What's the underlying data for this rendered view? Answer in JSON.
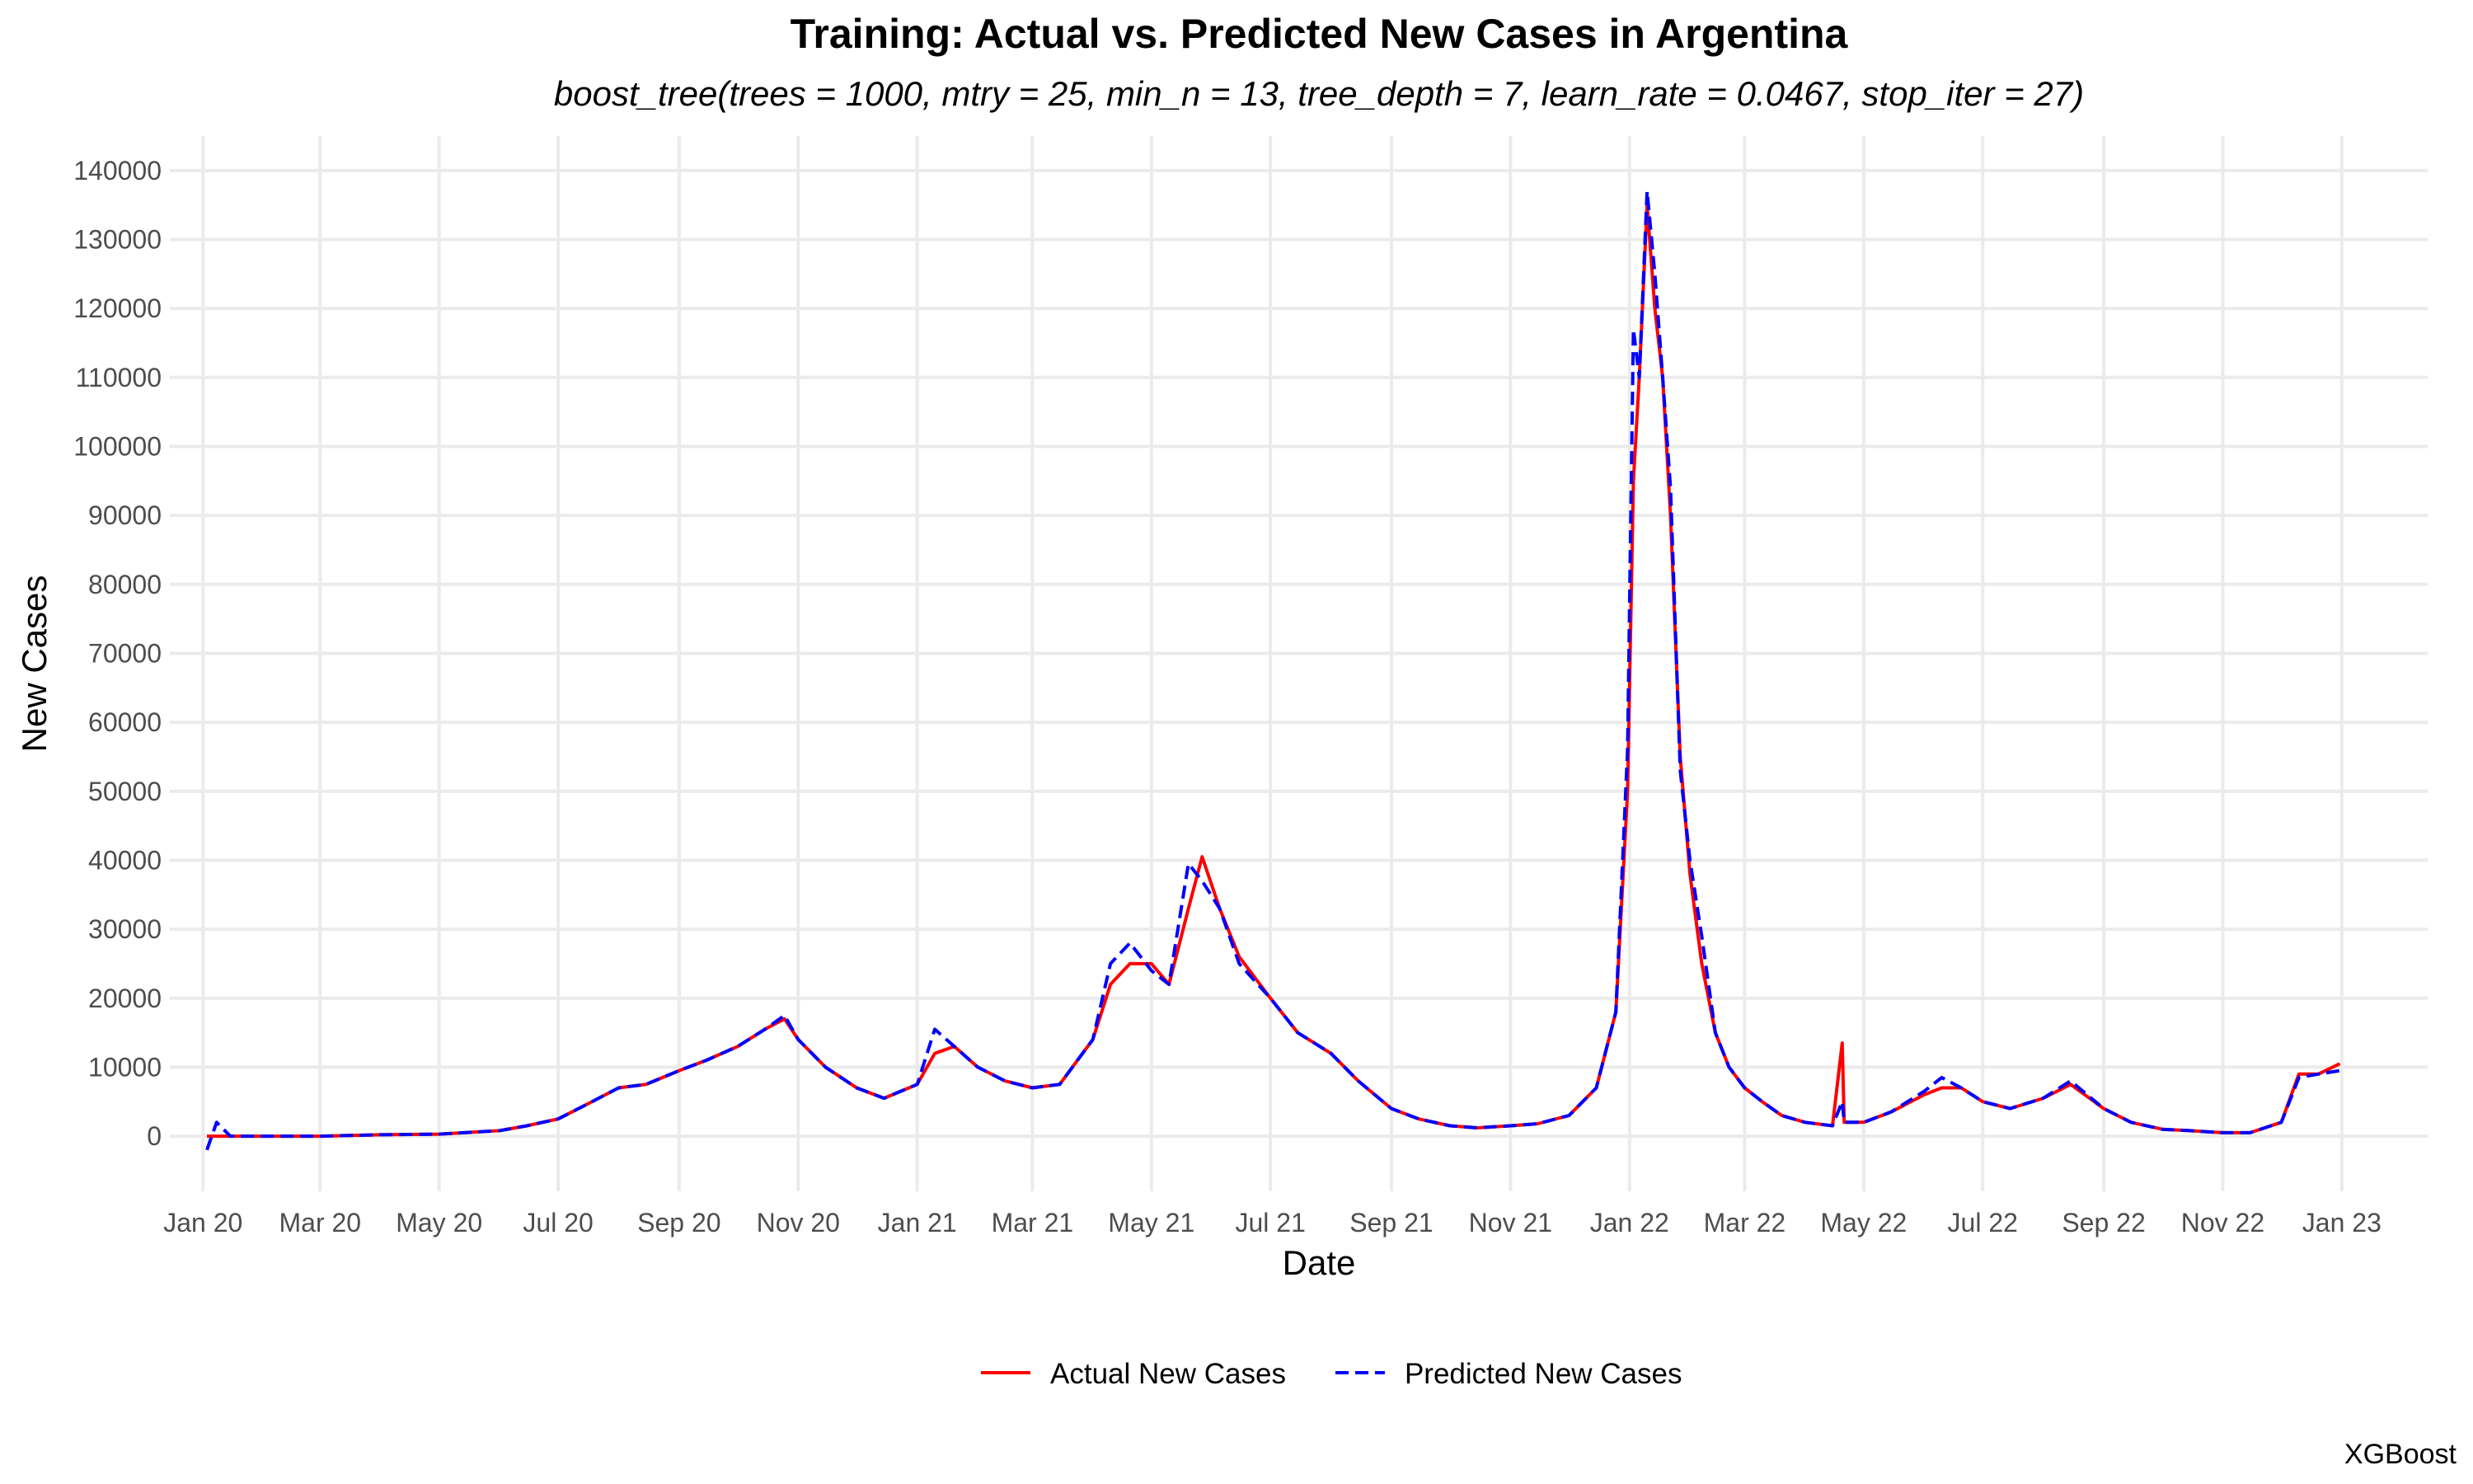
{
  "chart_data": {
    "type": "line",
    "title": "Training: Actual vs. Predicted New Cases in Argentina",
    "subtitle": "boost_tree(trees = 1000, mtry = 25, min_n = 13, tree_depth = 7, learn_rate = 0.0467, stop_iter = 27)",
    "xlabel": "Date",
    "ylabel": "New Cases",
    "caption": "XGBoost",
    "xlim": [
      "2019-12-15",
      "2023-02-14"
    ],
    "ylim": [
      -8000,
      145000
    ],
    "x_ticks": [
      {
        "date": "2020-01-01",
        "label": "Jan 20"
      },
      {
        "date": "2020-03-01",
        "label": "Mar 20"
      },
      {
        "date": "2020-05-01",
        "label": "May 20"
      },
      {
        "date": "2020-07-01",
        "label": "Jul 20"
      },
      {
        "date": "2020-09-01",
        "label": "Sep 20"
      },
      {
        "date": "2020-11-01",
        "label": "Nov 20"
      },
      {
        "date": "2021-01-01",
        "label": "Jan 21"
      },
      {
        "date": "2021-03-01",
        "label": "Mar 21"
      },
      {
        "date": "2021-05-01",
        "label": "May 21"
      },
      {
        "date": "2021-07-01",
        "label": "Jul 21"
      },
      {
        "date": "2021-09-01",
        "label": "Sep 21"
      },
      {
        "date": "2021-11-01",
        "label": "Nov 21"
      },
      {
        "date": "2022-01-01",
        "label": "Jan 22"
      },
      {
        "date": "2022-03-01",
        "label": "Mar 22"
      },
      {
        "date": "2022-05-01",
        "label": "May 22"
      },
      {
        "date": "2022-07-01",
        "label": "Jul 22"
      },
      {
        "date": "2022-09-01",
        "label": "Sep 22"
      },
      {
        "date": "2022-11-01",
        "label": "Nov 22"
      },
      {
        "date": "2023-01-01",
        "label": "Jan 23"
      }
    ],
    "y_ticks": [
      {
        "value": 0,
        "label": "0"
      },
      {
        "value": 10000,
        "label": "10000"
      },
      {
        "value": 20000,
        "label": "20000"
      },
      {
        "value": 30000,
        "label": "30000"
      },
      {
        "value": 40000,
        "label": "40000"
      },
      {
        "value": 50000,
        "label": "50000"
      },
      {
        "value": 60000,
        "label": "60000"
      },
      {
        "value": 70000,
        "label": "70000"
      },
      {
        "value": 80000,
        "label": "80000"
      },
      {
        "value": 90000,
        "label": "90000"
      },
      {
        "value": 100000,
        "label": "100000"
      },
      {
        "value": 110000,
        "label": "110000"
      },
      {
        "value": 120000,
        "label": "120000"
      },
      {
        "value": 130000,
        "label": "130000"
      },
      {
        "value": 140000,
        "label": "140000"
      }
    ],
    "grid": true,
    "legend_position": "bottom",
    "series": [
      {
        "name": "Actual New Cases",
        "color": "#ff0000",
        "style": "solid",
        "points": [
          [
            "2020-01-03",
            0
          ],
          [
            "2020-01-15",
            0
          ],
          [
            "2020-02-01",
            0
          ],
          [
            "2020-03-01",
            0
          ],
          [
            "2020-04-01",
            200
          ],
          [
            "2020-05-01",
            300
          ],
          [
            "2020-06-01",
            800
          ],
          [
            "2020-06-15",
            1500
          ],
          [
            "2020-07-01",
            2500
          ],
          [
            "2020-07-15",
            4500
          ],
          [
            "2020-08-01",
            7000
          ],
          [
            "2020-08-15",
            7500
          ],
          [
            "2020-09-01",
            9500
          ],
          [
            "2020-09-15",
            11000
          ],
          [
            "2020-10-01",
            13000
          ],
          [
            "2020-10-15",
            15500
          ],
          [
            "2020-10-25",
            17000
          ],
          [
            "2020-11-01",
            14000
          ],
          [
            "2020-11-15",
            10000
          ],
          [
            "2020-12-01",
            7000
          ],
          [
            "2020-12-15",
            5500
          ],
          [
            "2021-01-01",
            7500
          ],
          [
            "2021-01-10",
            12000
          ],
          [
            "2021-01-20",
            13000
          ],
          [
            "2021-02-01",
            10000
          ],
          [
            "2021-02-15",
            8000
          ],
          [
            "2021-03-01",
            7000
          ],
          [
            "2021-03-15",
            7500
          ],
          [
            "2021-04-01",
            14000
          ],
          [
            "2021-04-10",
            22000
          ],
          [
            "2021-04-20",
            25000
          ],
          [
            "2021-05-01",
            25000
          ],
          [
            "2021-05-10",
            22000
          ],
          [
            "2021-05-20",
            33000
          ],
          [
            "2021-05-27",
            40500
          ],
          [
            "2021-06-05",
            33000
          ],
          [
            "2021-06-15",
            26000
          ],
          [
            "2021-07-01",
            20000
          ],
          [
            "2021-07-15",
            15000
          ],
          [
            "2021-08-01",
            12000
          ],
          [
            "2021-08-15",
            8000
          ],
          [
            "2021-09-01",
            4000
          ],
          [
            "2021-09-15",
            2500
          ],
          [
            "2021-10-01",
            1500
          ],
          [
            "2021-10-15",
            1200
          ],
          [
            "2021-11-01",
            1500
          ],
          [
            "2021-11-15",
            1800
          ],
          [
            "2021-12-01",
            3000
          ],
          [
            "2021-12-15",
            7000
          ],
          [
            "2021-12-25",
            18000
          ],
          [
            "2021-12-31",
            50000
          ],
          [
            "2022-01-03",
            95000
          ],
          [
            "2022-01-06",
            110000
          ],
          [
            "2022-01-10",
            135000
          ],
          [
            "2022-01-14",
            120000
          ],
          [
            "2022-01-18",
            110000
          ],
          [
            "2022-01-22",
            90000
          ],
          [
            "2022-01-27",
            55000
          ],
          [
            "2022-02-01",
            38000
          ],
          [
            "2022-02-07",
            25000
          ],
          [
            "2022-02-14",
            15000
          ],
          [
            "2022-02-21",
            10000
          ],
          [
            "2022-03-01",
            7000
          ],
          [
            "2022-03-10",
            5000
          ],
          [
            "2022-03-20",
            3000
          ],
          [
            "2022-04-01",
            2000
          ],
          [
            "2022-04-15",
            1500
          ],
          [
            "2022-04-20",
            13500
          ],
          [
            "2022-04-21",
            2000
          ],
          [
            "2022-05-01",
            2000
          ],
          [
            "2022-05-15",
            3500
          ],
          [
            "2022-06-01",
            6000
          ],
          [
            "2022-06-10",
            7000
          ],
          [
            "2022-06-20",
            7000
          ],
          [
            "2022-07-01",
            5000
          ],
          [
            "2022-07-15",
            4000
          ],
          [
            "2022-08-01",
            5500
          ],
          [
            "2022-08-15",
            7500
          ],
          [
            "2022-09-01",
            4000
          ],
          [
            "2022-09-15",
            2000
          ],
          [
            "2022-10-01",
            1000
          ],
          [
            "2022-10-15",
            800
          ],
          [
            "2022-11-01",
            500
          ],
          [
            "2022-11-15",
            500
          ],
          [
            "2022-12-01",
            2000
          ],
          [
            "2022-12-10",
            9000
          ],
          [
            "2022-12-20",
            9000
          ],
          [
            "2022-12-31",
            10500
          ]
        ]
      },
      {
        "name": "Predicted New Cases",
        "color": "#0000ff",
        "style": "dashed",
        "points": [
          [
            "2020-01-03",
            -2000
          ],
          [
            "2020-01-08",
            2000
          ],
          [
            "2020-01-15",
            0
          ],
          [
            "2020-02-01",
            0
          ],
          [
            "2020-03-01",
            0
          ],
          [
            "2020-04-01",
            200
          ],
          [
            "2020-05-01",
            300
          ],
          [
            "2020-06-01",
            800
          ],
          [
            "2020-06-15",
            1500
          ],
          [
            "2020-07-01",
            2500
          ],
          [
            "2020-07-15",
            4500
          ],
          [
            "2020-08-01",
            7000
          ],
          [
            "2020-08-15",
            7500
          ],
          [
            "2020-09-01",
            9500
          ],
          [
            "2020-09-15",
            11000
          ],
          [
            "2020-10-01",
            13000
          ],
          [
            "2020-10-15",
            15500
          ],
          [
            "2020-10-25",
            17500
          ],
          [
            "2020-11-01",
            14000
          ],
          [
            "2020-11-15",
            10000
          ],
          [
            "2020-12-01",
            7000
          ],
          [
            "2020-12-15",
            5500
          ],
          [
            "2021-01-01",
            7500
          ],
          [
            "2021-01-10",
            15500
          ],
          [
            "2021-01-20",
            13000
          ],
          [
            "2021-02-01",
            10000
          ],
          [
            "2021-02-15",
            8000
          ],
          [
            "2021-03-01",
            7000
          ],
          [
            "2021-03-15",
            7500
          ],
          [
            "2021-04-01",
            14000
          ],
          [
            "2021-04-10",
            25000
          ],
          [
            "2021-04-20",
            28000
          ],
          [
            "2021-05-01",
            24000
          ],
          [
            "2021-05-10",
            22000
          ],
          [
            "2021-05-20",
            39500
          ],
          [
            "2021-05-27",
            37000
          ],
          [
            "2021-06-05",
            33000
          ],
          [
            "2021-06-15",
            25000
          ],
          [
            "2021-07-01",
            20000
          ],
          [
            "2021-07-15",
            15000
          ],
          [
            "2021-08-01",
            12000
          ],
          [
            "2021-08-15",
            8000
          ],
          [
            "2021-09-01",
            4000
          ],
          [
            "2021-09-15",
            2500
          ],
          [
            "2021-10-01",
            1500
          ],
          [
            "2021-10-15",
            1200
          ],
          [
            "2021-11-01",
            1500
          ],
          [
            "2021-11-15",
            1800
          ],
          [
            "2021-12-01",
            3000
          ],
          [
            "2021-12-15",
            7000
          ],
          [
            "2021-12-25",
            18000
          ],
          [
            "2021-12-31",
            56000
          ],
          [
            "2022-01-03",
            117000
          ],
          [
            "2022-01-06",
            110000
          ],
          [
            "2022-01-10",
            137000
          ],
          [
            "2022-01-14",
            125000
          ],
          [
            "2022-01-18",
            110000
          ],
          [
            "2022-01-22",
            94000
          ],
          [
            "2022-01-27",
            53000
          ],
          [
            "2022-02-01",
            40000
          ],
          [
            "2022-02-07",
            29000
          ],
          [
            "2022-02-14",
            15000
          ],
          [
            "2022-02-21",
            10000
          ],
          [
            "2022-03-01",
            7000
          ],
          [
            "2022-03-10",
            5000
          ],
          [
            "2022-03-20",
            3000
          ],
          [
            "2022-04-01",
            2000
          ],
          [
            "2022-04-15",
            1500
          ],
          [
            "2022-04-20",
            5000
          ],
          [
            "2022-04-21",
            2000
          ],
          [
            "2022-05-01",
            2000
          ],
          [
            "2022-05-15",
            3500
          ],
          [
            "2022-06-01",
            6500
          ],
          [
            "2022-06-10",
            8500
          ],
          [
            "2022-06-20",
            7000
          ],
          [
            "2022-07-01",
            5000
          ],
          [
            "2022-07-15",
            4000
          ],
          [
            "2022-08-01",
            5500
          ],
          [
            "2022-08-15",
            8000
          ],
          [
            "2022-09-01",
            4000
          ],
          [
            "2022-09-15",
            2000
          ],
          [
            "2022-10-01",
            1000
          ],
          [
            "2022-10-15",
            800
          ],
          [
            "2022-11-01",
            500
          ],
          [
            "2022-11-15",
            500
          ],
          [
            "2022-12-01",
            2000
          ],
          [
            "2022-12-10",
            8500
          ],
          [
            "2022-12-20",
            9000
          ],
          [
            "2022-12-31",
            9500
          ]
        ]
      }
    ]
  }
}
